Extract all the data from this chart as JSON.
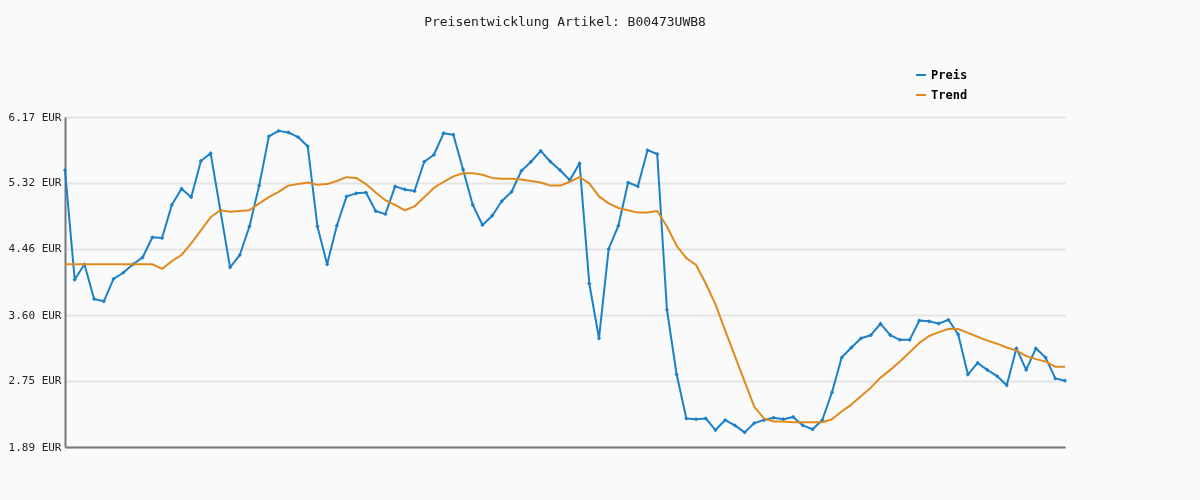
{
  "chart_data": {
    "type": "line",
    "title": "Preisentwicklung Artikel: B00473UWB8",
    "categories": [
      null,
      null,
      null,
      null,
      null,
      null,
      null,
      null,
      null,
      null,
      null,
      null,
      null,
      null,
      null,
      null,
      null,
      null,
      null,
      null,
      null,
      null,
      null,
      null,
      null,
      null,
      null,
      null,
      null,
      null,
      null,
      null,
      null,
      null,
      null,
      null,
      null,
      null,
      null,
      null,
      null,
      null,
      null,
      null,
      null,
      null,
      null,
      null,
      null,
      null,
      null,
      null,
      null,
      null,
      null,
      null,
      null,
      null,
      null,
      null,
      null,
      null,
      null,
      null,
      null,
      null,
      null,
      null,
      null,
      null,
      null,
      null,
      null,
      null,
      null,
      null,
      null,
      null,
      null,
      null,
      null,
      null,
      null,
      null,
      null,
      null,
      null,
      null,
      null,
      null,
      null,
      null,
      null,
      null,
      null,
      null,
      null,
      null,
      null,
      null,
      null,
      null,
      null,
      null
    ],
    "series": [
      {
        "name": "Preis",
        "color": "#1b80c8",
        "marker": "diamond",
        "values": [
          5.48,
          4.06,
          4.26,
          3.81,
          3.78,
          4.07,
          4.15,
          4.26,
          4.35,
          4.61,
          4.6,
          5.03,
          5.24,
          5.13,
          5.6,
          5.7,
          4.96,
          4.22,
          4.38,
          4.75,
          5.28,
          5.92,
          5.99,
          5.97,
          5.91,
          5.79,
          4.75,
          4.26,
          4.76,
          5.14,
          5.18,
          5.19,
          4.95,
          4.91,
          5.27,
          5.23,
          5.21,
          5.59,
          5.68,
          5.96,
          5.94,
          5.49,
          5.03,
          4.77,
          4.89,
          5.08,
          5.2,
          5.47,
          5.59,
          5.73,
          5.59,
          5.48,
          5.35,
          5.57,
          4.01,
          3.3,
          4.46,
          4.76,
          5.32,
          5.27,
          5.74,
          5.69,
          3.67,
          2.83,
          2.26,
          2.25,
          2.26,
          2.11,
          2.24,
          2.17,
          2.08,
          2.2,
          2.24,
          2.27,
          2.25,
          2.28,
          2.17,
          2.12,
          2.24,
          2.6,
          3.05,
          3.18,
          3.3,
          3.34,
          3.49,
          3.34,
          3.28,
          3.28,
          3.53,
          3.52,
          3.49,
          3.54,
          3.35,
          2.83,
          2.98,
          2.89,
          2.81,
          2.69,
          3.17,
          2.89,
          3.17,
          3.05,
          2.78,
          2.75
        ]
      },
      {
        "name": "Trend",
        "color": "#e08a1e",
        "values": [
          4.26,
          4.26,
          4.26,
          4.26,
          4.26,
          4.26,
          4.26,
          4.26,
          4.26,
          4.26,
          4.2,
          4.3,
          4.38,
          4.53,
          4.7,
          4.87,
          4.96,
          4.94,
          4.95,
          4.96,
          5.05,
          5.13,
          5.2,
          5.28,
          5.3,
          5.32,
          5.29,
          5.3,
          5.34,
          5.39,
          5.38,
          5.3,
          5.19,
          5.09,
          5.03,
          4.96,
          5.01,
          5.13,
          5.25,
          5.33,
          5.4,
          5.44,
          5.44,
          5.42,
          5.38,
          5.37,
          5.37,
          5.36,
          5.34,
          5.32,
          5.28,
          5.28,
          5.33,
          5.39,
          5.31,
          5.14,
          5.05,
          4.99,
          4.96,
          4.93,
          4.93,
          4.95,
          4.75,
          4.5,
          4.34,
          4.25,
          4.01,
          3.74,
          3.4,
          3.07,
          2.74,
          2.41,
          2.26,
          2.22,
          2.22,
          2.21,
          2.21,
          2.21,
          2.21,
          2.25,
          2.35,
          2.44,
          2.55,
          2.66,
          2.79,
          2.89,
          3.0,
          3.12,
          3.24,
          3.33,
          3.38,
          3.42,
          3.42,
          3.37,
          3.32,
          3.27,
          3.23,
          3.18,
          3.14,
          3.07,
          3.03,
          3.0,
          2.93,
          2.93
        ]
      }
    ],
    "ylim": [
      1.89,
      6.17
    ],
    "yticks": [
      {
        "value": 1.89,
        "label": "1.89 EUR"
      },
      {
        "value": 2.75,
        "label": "2.75 EUR"
      },
      {
        "value": 3.6,
        "label": "3.60 EUR"
      },
      {
        "value": 4.46,
        "label": "4.46 EUR"
      },
      {
        "value": 5.32,
        "label": "5.32 EUR"
      },
      {
        "value": 6.17,
        "label": "6.17 EUR"
      }
    ],
    "grid": "y",
    "legend": "top right",
    "tick_labels": "y"
  }
}
